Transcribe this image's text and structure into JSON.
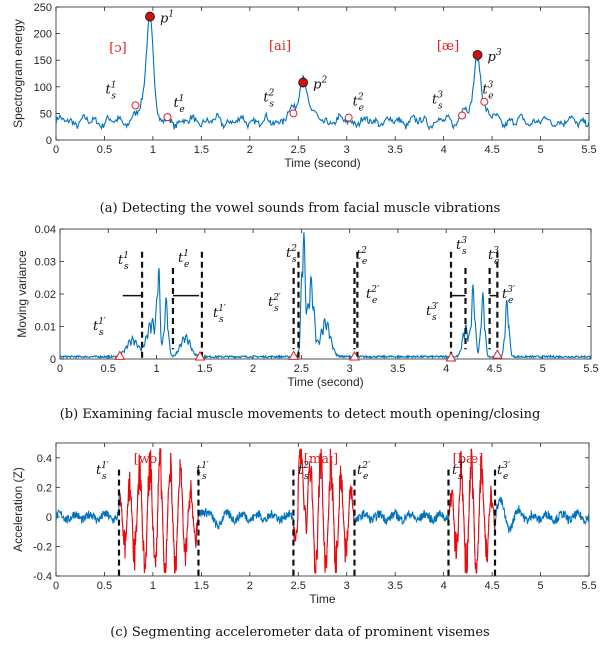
{
  "chart_data": [
    {
      "type": "line",
      "xlabel": "Time (second)",
      "ylabel": "Spectrogram energy",
      "xlim": [
        0,
        5.5
      ],
      "ylim": [
        0,
        250
      ],
      "xticks": [
        "0",
        "0.5",
        "1",
        "1.5",
        "2",
        "2.5",
        "3",
        "3.5",
        "4",
        "4.5",
        "5",
        "5.5"
      ],
      "yticks": [
        "0",
        "50",
        "100",
        "150",
        "200",
        "250"
      ],
      "series_color": "#0072BD",
      "peaks": [
        {
          "label": "p",
          "sup": "1",
          "x": 0.97,
          "y": 232
        },
        {
          "label": "p",
          "sup": "2",
          "x": 2.55,
          "y": 108
        },
        {
          "label": "p",
          "sup": "3",
          "x": 4.35,
          "y": 160
        }
      ],
      "boundaries": [
        {
          "label": "t",
          "sub": "s",
          "sup": "1",
          "x": 0.82,
          "y": 65
        },
        {
          "label": "t",
          "sub": "e",
          "sup": "1",
          "x": 1.15,
          "y": 43
        },
        {
          "label": "t",
          "sub": "s",
          "sup": "2",
          "x": 2.45,
          "y": 50
        },
        {
          "label": "t",
          "sub": "e",
          "sup": "2",
          "x": 3.02,
          "y": 42
        },
        {
          "label": "t",
          "sub": "s",
          "sup": "3",
          "x": 4.19,
          "y": 46
        },
        {
          "label": "t",
          "sub": "e",
          "sup": "3",
          "x": 4.42,
          "y": 72
        }
      ],
      "annotations": [
        "[ɔ]",
        "[ai]",
        "[æ]"
      ],
      "caption": "(a)  Detecting the vowel sounds from facial muscle vibrations"
    },
    {
      "type": "line",
      "xlabel": "Time (second)",
      "ylabel": "Moving variance",
      "xlim": [
        0,
        5.5
      ],
      "ylim": [
        0,
        0.04
      ],
      "xticks": [
        "0",
        "0.5",
        "1",
        "1.5",
        "2",
        "2.5",
        "3",
        "3.5",
        "4",
        "4.5",
        "5",
        "5.5"
      ],
      "yticks": [
        "0",
        "0.01",
        "0.02",
        "0.03",
        "0.04"
      ],
      "series_color": "#0072BD",
      "dashed_lines_x": [
        0.85,
        1.47,
        2.47,
        3.08,
        4.05,
        4.53
      ],
      "inner_dashed_x": [
        1.17,
        2.42,
        3.05,
        4.2,
        4.45
      ],
      "markers": [
        {
          "x": 0.62,
          "y": 0.0008
        },
        {
          "x": 1.45,
          "y": 0.0006
        },
        {
          "x": 2.42,
          "y": 0.0008
        },
        {
          "x": 3.05,
          "y": 0.0006
        },
        {
          "x": 4.05,
          "y": 0.0003
        },
        {
          "x": 4.53,
          "y": 0.0012
        }
      ],
      "labels": [
        "t_s^1",
        "t_e^1",
        "t_s^1′",
        "t_s^1′",
        "t_s^2",
        "t_e^2",
        "t_s^2′",
        "t_e^2′",
        "t_s^3",
        "t_e^3",
        "t_s^3′",
        "t_e^3′"
      ],
      "caption": "(b)  Examining facial muscle movements to detect mouth opening/closing"
    },
    {
      "type": "line",
      "xlabel": "Time",
      "ylabel": "Acceleration (Z)",
      "xlim": [
        0,
        5.5
      ],
      "ylim": [
        -0.4,
        0.5
      ],
      "xticks": [
        "0",
        "0.5",
        "1",
        "1.5",
        "2",
        "2.5",
        "3",
        "3.5",
        "4",
        "4.5",
        "5",
        "5.5"
      ],
      "yticks": [
        "-0.4",
        "-0.2",
        "0",
        "0.2",
        "0.4"
      ],
      "series_color": "#0072BD",
      "highlight_color": "#FF0000",
      "segments": [
        {
          "start": 0.65,
          "end": 1.47,
          "label": "[wɔ]"
        },
        {
          "start": 2.45,
          "end": 3.08,
          "label": "[maɪ]"
        },
        {
          "start": 4.05,
          "end": 4.53,
          "label": "[bæ]"
        }
      ],
      "labels": [
        "t_s^1′",
        "t_s^1′",
        "t_s^2′",
        "t_e^2′",
        "t_s^3′",
        "t_e^3′"
      ],
      "caption": "(c)  Segmenting accelerometer data of prominent visemes"
    }
  ]
}
